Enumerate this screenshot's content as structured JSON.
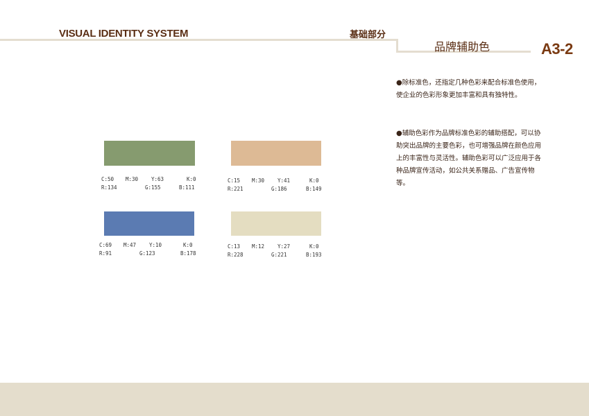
{
  "header": {
    "system_title": "VISUAL IDENTITY SYSTEM",
    "section": "基础部分",
    "page_title": "品牌辅助色",
    "page_number": "A3-2"
  },
  "description": {
    "para1": "除标准色，还指定几种色彩来配合标准色使用，使企业的色彩形象更加丰富和具有独特性。",
    "para2": "辅助色彩作为品牌标准色彩的辅助搭配，可以协助突出品牌的主要色彩，也可增强品牌在颜色应用上的丰富性与灵活性。辅助色彩可以广泛应用于各种品牌宣传活动，如公共关系赠品、广告宣传物等。",
    "bullet": "●"
  },
  "swatches": [
    {
      "color": "#869b6f",
      "c": "C:50",
      "m": "M:30",
      "y": "Y:63",
      "k": "K:0",
      "r": "R:134",
      "g": "G:155",
      "b": "B:111"
    },
    {
      "color": "#ddba95",
      "c": "C:15",
      "m": "M:30",
      "y": "Y:41",
      "k": "K:0",
      "r": "R:221",
      "g": "G:186",
      "b": "B:149"
    },
    {
      "color": "#5b7bb2",
      "c": "C:69",
      "m": "M:47",
      "y": "Y:10",
      "k": "K:0",
      "r": "R:91",
      "g": "G:123",
      "b": "B:178"
    },
    {
      "color": "#e4ddc1",
      "c": "C:13",
      "m": "M:12",
      "y": "Y:27",
      "k": "K:0",
      "r": "R:228",
      "g": "G:221",
      "b": "B:193"
    }
  ],
  "colors": {
    "text_brown": "#5a2e14",
    "page_number": "#7a3a12",
    "rule": "#e4ddd0",
    "footer": "#e4ddcc"
  }
}
